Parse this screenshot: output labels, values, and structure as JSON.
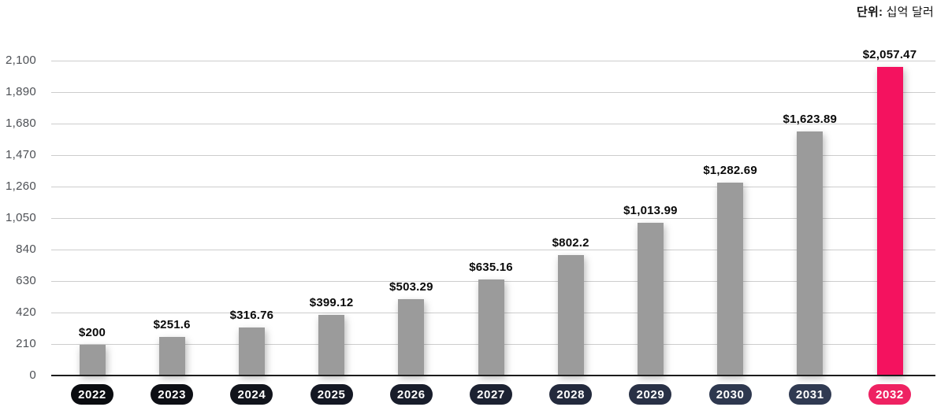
{
  "unit": {
    "bold": "단위:",
    "text": " 십억 달러"
  },
  "chart_data": {
    "type": "bar",
    "title": "",
    "unit_label": "단위: 십억 달러",
    "categories": [
      "2022",
      "2023",
      "2024",
      "2025",
      "2026",
      "2027",
      "2028",
      "2029",
      "2030",
      "2031",
      "2032"
    ],
    "values": [
      200,
      251.6,
      316.76,
      399.12,
      503.29,
      635.16,
      802.2,
      1013.99,
      1282.69,
      1623.89,
      2057.47
    ],
    "value_labels": [
      "$200",
      "$251.6",
      "$316.76",
      "$399.12",
      "$503.29",
      "$635.16",
      "$802.2",
      "$1,013.99",
      "$1,282.69",
      "$1,623.89",
      "$2,057.47"
    ],
    "xlabel": "",
    "ylabel": "",
    "ylim": [
      0,
      2100
    ],
    "ytick_interval": 210,
    "ytick_labels": [
      "2,100",
      "1,890",
      "1,680",
      "1,470",
      "1,260",
      "1,050",
      "840",
      "630",
      "420",
      "210",
      "0"
    ],
    "grid": true,
    "legend": false,
    "bar_color": "#9B9B9B",
    "highlight_index": 10,
    "highlight_color": "#F4125F",
    "pill_text_color": "#FFFFFF",
    "pill_colors": [
      "#0A0C10",
      "#0D0F15",
      "#11141C",
      "#141824",
      "#181D2B",
      "#1C2232",
      "#232A3D",
      "#293146",
      "#2E384F",
      "#303A52",
      "#EE2262"
    ]
  }
}
